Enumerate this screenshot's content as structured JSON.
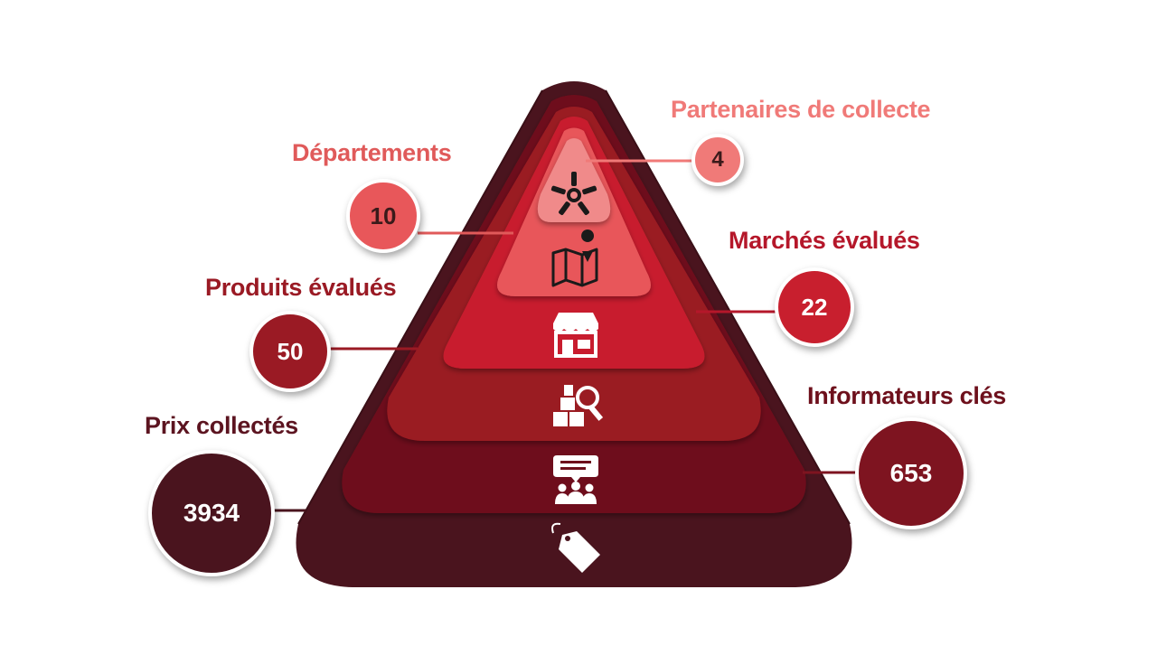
{
  "colors": {
    "outer": "#4A141E",
    "tier_dark": "#6E101C",
    "tier_mid": "#7E1420",
    "tier_red": "#9A1A24",
    "tier_bright": "#C81F2E",
    "tier_light": "#E8575A",
    "tier_top": "#F08A8A",
    "label_pink": "#F07A78",
    "label_red": "#E05A5A",
    "label_crimson": "#B5172A",
    "label_dark": "#5C1420"
  },
  "items": [
    {
      "label": "Partenaires de collecte",
      "value": "4",
      "icon": "handshake-circle-icon"
    },
    {
      "label": "Départements",
      "value": "10",
      "icon": "map-icon"
    },
    {
      "label": "Marchés évalués",
      "value": "22",
      "icon": "store-icon"
    },
    {
      "label": "Produits évalués",
      "value": "50",
      "icon": "product-search-icon"
    },
    {
      "label": "Informateurs clés",
      "value": "653",
      "icon": "audience-chat-icon"
    },
    {
      "label": "Prix collectés",
      "value": "3934",
      "icon": "price-tag-icon"
    }
  ]
}
